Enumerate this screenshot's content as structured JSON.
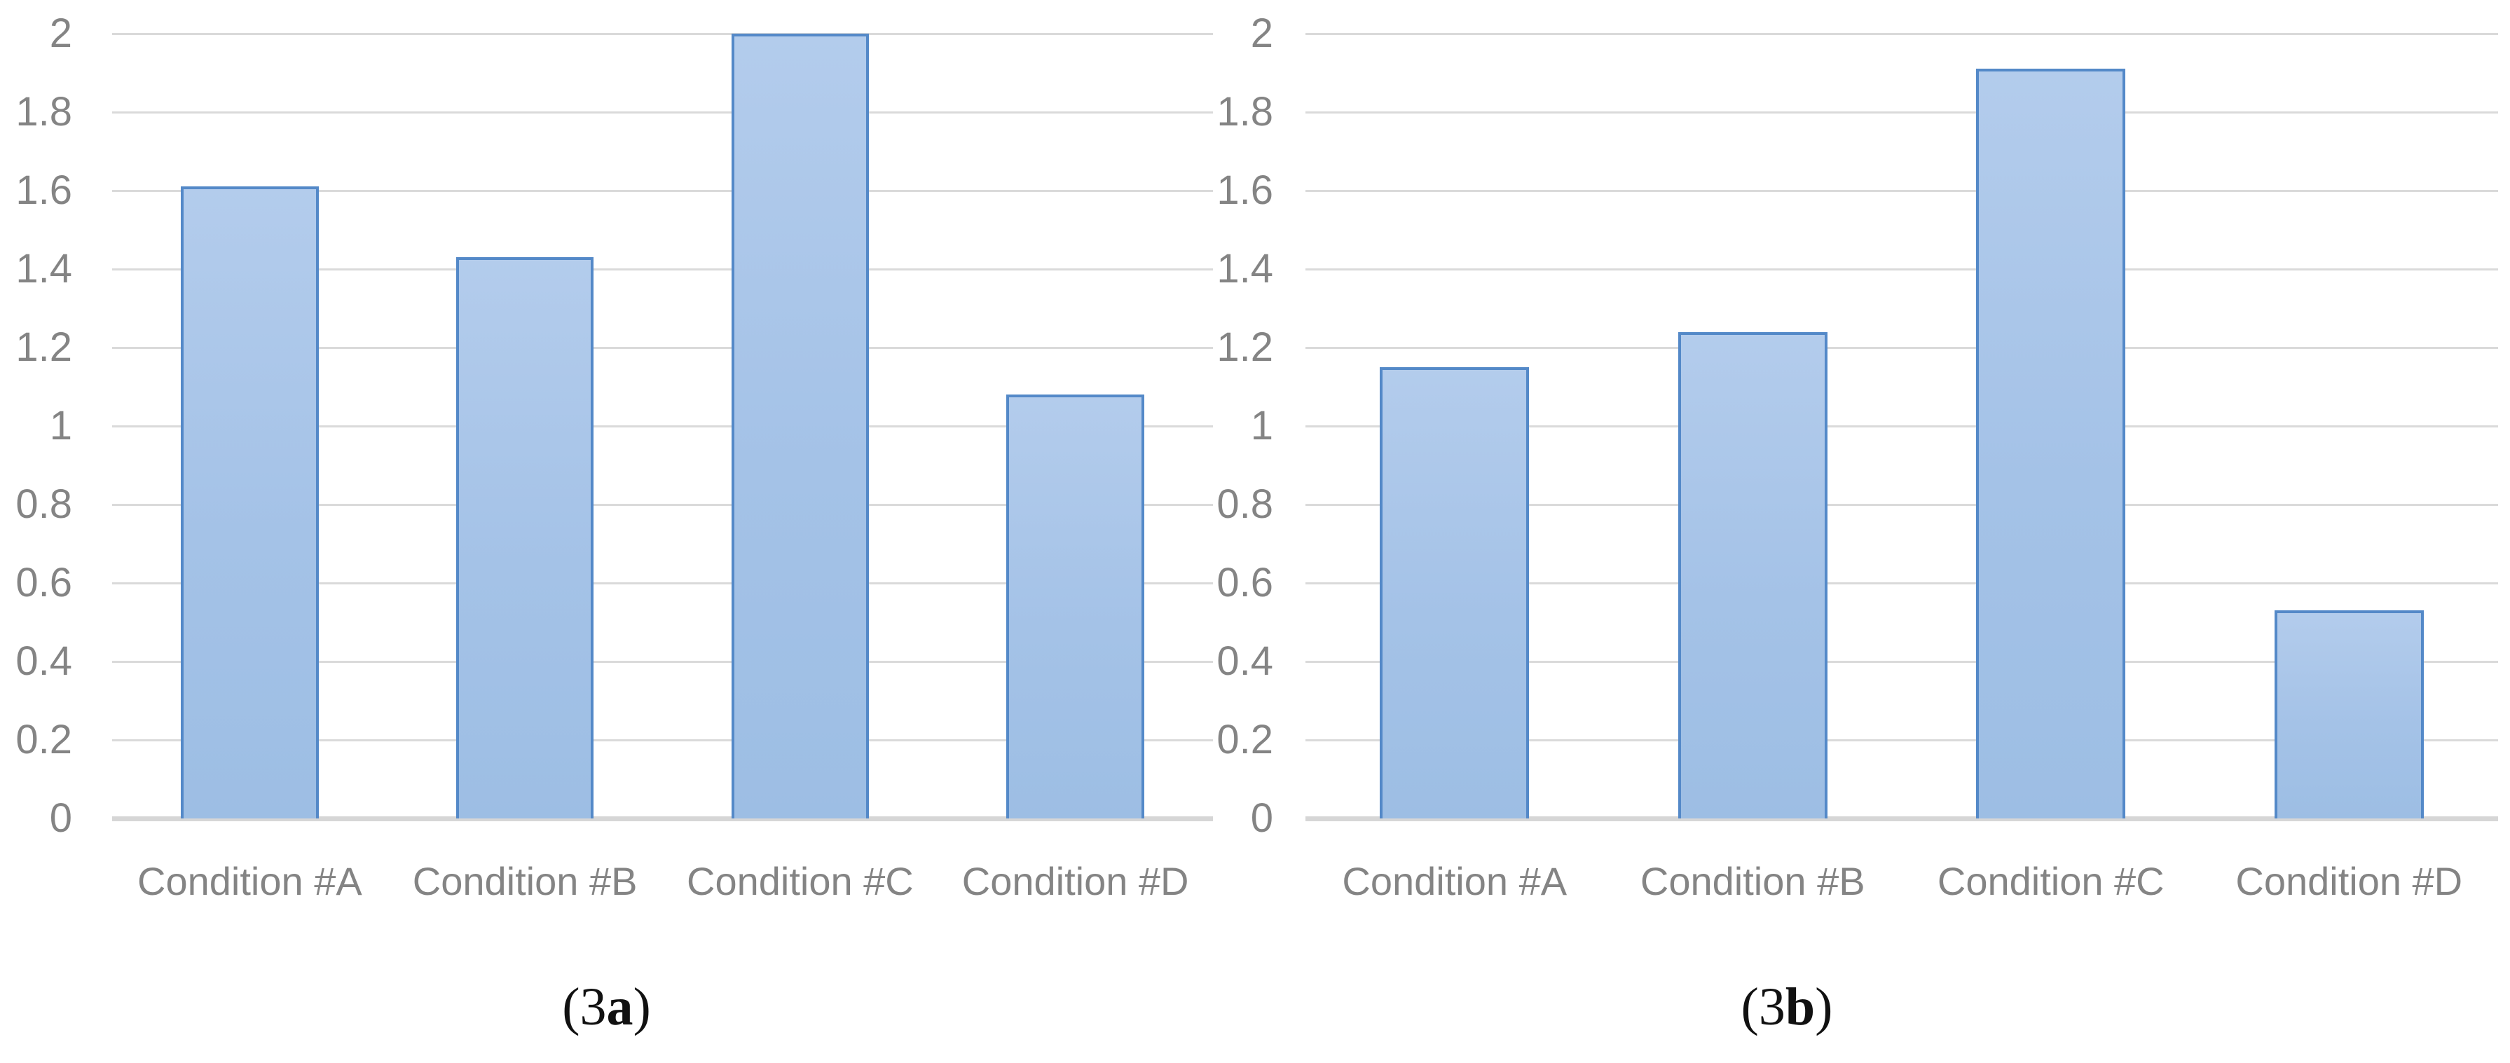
{
  "figure": {
    "captions": [
      {
        "pre": "(3",
        "bold": "a",
        "post": ")"
      },
      {
        "pre": "(3",
        "bold": "b",
        "post": ")"
      }
    ]
  },
  "axis": {
    "y_tick_labels": [
      "2",
      "1.8",
      "1.6",
      "1.4",
      "1.2",
      "1",
      "0.8",
      "0.6",
      "0.4",
      "0.2",
      "0"
    ],
    "y_min": 0,
    "y_max": 2
  },
  "chart_data": [
    {
      "type": "bar",
      "panel_label": "(3a)",
      "title": "",
      "xlabel": "",
      "ylabel": "",
      "categories": [
        "Condition #A",
        "Condition #B",
        "Condition #C",
        "Condition #D"
      ],
      "values": [
        1.61,
        1.43,
        2.0,
        1.08
      ],
      "ylim": [
        0,
        2
      ],
      "ytick_step": 0.2,
      "grid": true,
      "legend": false
    },
    {
      "type": "bar",
      "panel_label": "(3b)",
      "title": "",
      "xlabel": "",
      "ylabel": "",
      "categories": [
        "Condition #A",
        "Condition #B",
        "Condition #C",
        "Condition #D"
      ],
      "values": [
        1.15,
        1.24,
        1.91,
        0.53
      ],
      "ylim": [
        0,
        2
      ],
      "ytick_step": 0.2,
      "grid": true,
      "legend": false
    }
  ],
  "colors": {
    "bar_fill_top": "#B3CCEC",
    "bar_fill_mid": "#A4C2E7",
    "bar_fill_bottom": "#9DBEE4",
    "bar_border": "#5489C8",
    "gridline": "#DADADA",
    "axis_line": "#D6D6D6",
    "tick_text": "#848484",
    "caption_text": "#111111",
    "background": "#FFFFFF"
  }
}
